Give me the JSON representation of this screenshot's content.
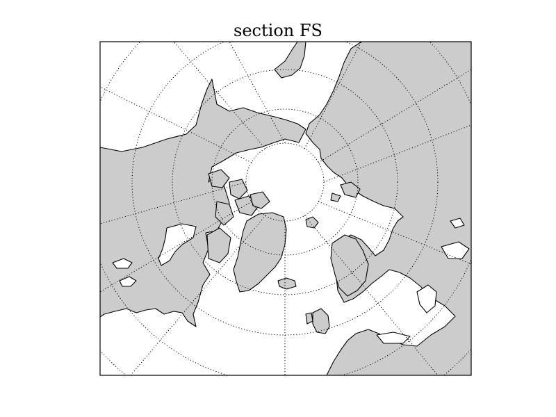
{
  "title": "section FS",
  "map": {
    "projection": "north-polar-stereographic",
    "land_color": "#cccccc",
    "ocean_color": "#ffffff",
    "coastline_color": "#000000",
    "graticule_color": "#000000",
    "graticule": "dotted"
  }
}
